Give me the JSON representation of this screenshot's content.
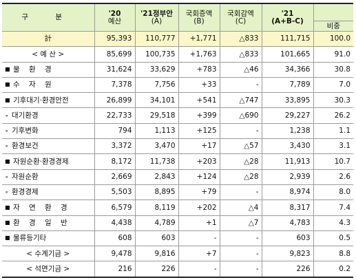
{
  "header": {
    "category": "구 분",
    "col2020_top": "'20",
    "col2020_bot": "예산",
    "colGov_top": "'21정부안",
    "colGov_bot": "(A)",
    "colIncrease_top": "국회증액",
    "colIncrease_bot": "(B)",
    "colDecrease_top": "국회감액",
    "colDecrease_bot": "(C)",
    "col2021_top": "'21",
    "col2021_bot": "(A+B-C)",
    "colShare": "비중"
  },
  "rows": [
    {
      "label": "計",
      "style": "total",
      "v2020": "95,393",
      "gov": "110,777",
      "inc": "+1,771",
      "dec": "△833",
      "v2021": "111,715",
      "share": "100.0"
    },
    {
      "label": "< 예 산 >",
      "style": "center",
      "v2020": "85,699",
      "gov": "100,735",
      "inc": "+1,763",
      "dec": "△833",
      "v2021": "101,665",
      "share": "91.0"
    },
    {
      "label": "물 환 경",
      "style": "square-spaced",
      "v2020": "31,624",
      "gov": "33,629",
      "inc": "+783",
      "dec": "△46",
      "v2021": "34,366",
      "share": "30.8"
    },
    {
      "label": "수 자 원",
      "style": "square-spaced",
      "v2020": "7,378",
      "gov": "7,756",
      "inc": "+33",
      "dec": "-",
      "v2021": "7,789",
      "share": "7.0"
    },
    {
      "label": "기후대기·환경안전",
      "style": "square",
      "v2020": "26,899",
      "gov": "34,101",
      "inc": "+541",
      "dec": "△747",
      "v2021": "33,895",
      "share": "30.3"
    },
    {
      "label": "대기환경",
      "style": "ring",
      "v2020": "22,733",
      "gov": "29,518",
      "inc": "+399",
      "dec": "△690",
      "v2021": "29,227",
      "share": "26.2"
    },
    {
      "label": "기후변화",
      "style": "ring",
      "v2020": "794",
      "gov": "1,113",
      "inc": "+125",
      "dec": "-",
      "v2021": "1,238",
      "share": "1.1"
    },
    {
      "label": "환경보건",
      "style": "ring",
      "v2020": "3,372",
      "gov": "3,470",
      "inc": "+17",
      "dec": "△57",
      "v2021": "3,430",
      "share": "3.1"
    },
    {
      "label": "자원순환·환경경제",
      "style": "square",
      "v2020": "8,172",
      "gov": "11,738",
      "inc": "+203",
      "dec": "△28",
      "v2021": "11,913",
      "share": "10.7"
    },
    {
      "label": "자원순환",
      "style": "ring",
      "v2020": "2,669",
      "gov": "2,843",
      "inc": "+124",
      "dec": "△28",
      "v2021": "2,939",
      "share": "2.6"
    },
    {
      "label": "환경경제",
      "style": "ring",
      "v2020": "5,503",
      "gov": "8,895",
      "inc": "+79",
      "dec": "-",
      "v2021": "8,974",
      "share": "8.0"
    },
    {
      "label": "자 연 환 경",
      "style": "square-spaced",
      "v2020": "6,579",
      "gov": "8,119",
      "inc": "+202",
      "dec": "△4",
      "v2021": "8,317",
      "share": "7.4"
    },
    {
      "label": "환 경 일 반",
      "style": "square-spaced",
      "v2020": "4,438",
      "gov": "4,789",
      "inc": "+1",
      "dec": "△7",
      "v2021": "4,783",
      "share": "4.3"
    },
    {
      "label": "물류등기타",
      "style": "square",
      "v2020": "608",
      "gov": "603",
      "inc": "-",
      "dec": "-",
      "v2021": "603",
      "share": "0.5"
    },
    {
      "label": "< 수계기금 >",
      "style": "center",
      "v2020": "9,478",
      "gov": "9,816",
      "inc": "+7",
      "dec": "-",
      "v2021": "9,823",
      "share": "8.8"
    },
    {
      "label": "< 석면기금 >",
      "style": "center",
      "v2020": "216",
      "gov": "226",
      "inc": "-",
      "dec": "-",
      "v2021": "226",
      "share": "0.2"
    }
  ],
  "colors": {
    "header_bg": "#e4f2c8",
    "total_bg": "#fbf7c8"
  },
  "icons": {
    "square": "black-square-bullet-icon",
    "ring": "small-circle-bullet-icon"
  }
}
